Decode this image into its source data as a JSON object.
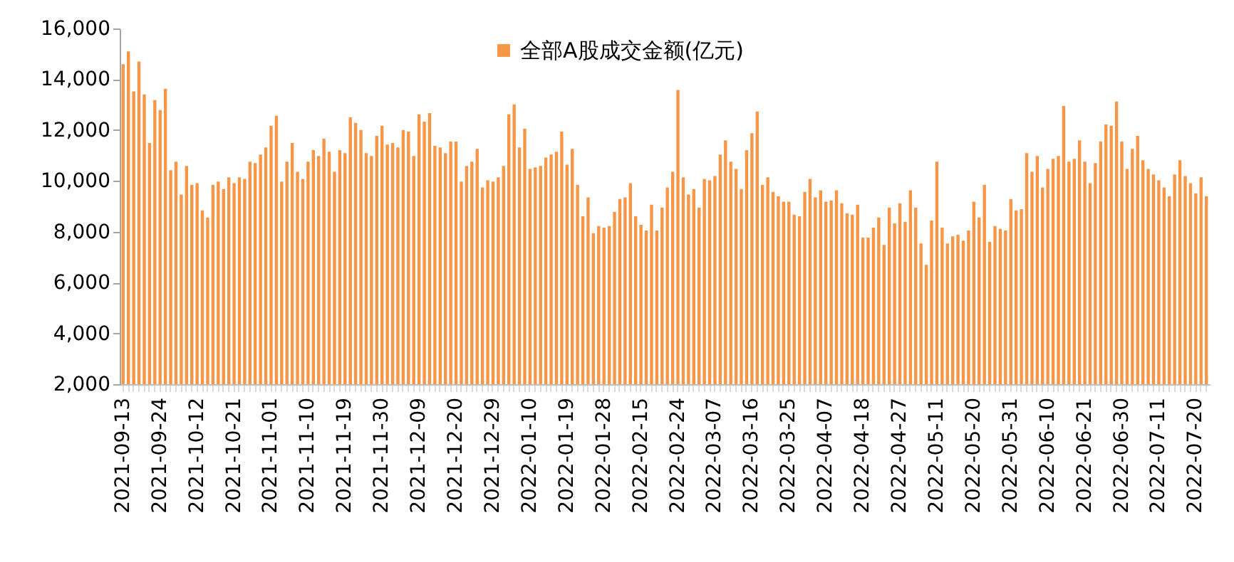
{
  "chart_data": {
    "type": "bar",
    "categories": [
      "2021-09-13",
      null,
      null,
      null,
      null,
      null,
      null,
      "2021-09-24",
      null,
      null,
      null,
      null,
      null,
      null,
      "2021-10-12",
      null,
      null,
      null,
      null,
      null,
      null,
      "2021-10-21",
      null,
      null,
      null,
      null,
      null,
      null,
      "2021-11-01",
      null,
      null,
      null,
      null,
      null,
      null,
      "2021-11-10",
      null,
      null,
      null,
      null,
      null,
      null,
      "2021-11-19",
      null,
      null,
      null,
      null,
      null,
      null,
      "2021-11-30",
      null,
      null,
      null,
      null,
      null,
      null,
      "2021-12-09",
      null,
      null,
      null,
      null,
      null,
      null,
      "2021-12-20",
      null,
      null,
      null,
      null,
      null,
      null,
      "2021-12-29",
      null,
      null,
      null,
      null,
      null,
      null,
      "2022-01-10",
      null,
      null,
      null,
      null,
      null,
      null,
      "2022-01-19",
      null,
      null,
      null,
      null,
      null,
      null,
      "2022-01-28",
      null,
      null,
      null,
      null,
      null,
      null,
      "2022-02-15",
      null,
      null,
      null,
      null,
      null,
      null,
      "2022-02-24",
      null,
      null,
      null,
      null,
      null,
      null,
      "2022-03-07",
      null,
      null,
      null,
      null,
      null,
      null,
      "2022-03-16",
      null,
      null,
      null,
      null,
      null,
      null,
      "2022-03-25",
      null,
      null,
      null,
      null,
      null,
      null,
      "2022-04-07",
      null,
      null,
      null,
      null,
      null,
      null,
      "2022-04-18",
      null,
      null,
      null,
      null,
      null,
      null,
      "2022-04-27",
      null,
      null,
      null,
      null,
      null,
      null,
      "2022-05-11",
      null,
      null,
      null,
      null,
      null,
      null,
      "2022-05-20",
      null,
      null,
      null,
      null,
      null,
      null,
      "2022-05-31",
      null,
      null,
      null,
      null,
      null,
      null,
      "2022-06-10",
      null,
      null,
      null,
      null,
      null,
      null,
      "2022-06-21",
      null,
      null,
      null,
      null,
      null,
      null,
      "2022-06-30",
      null,
      null,
      null,
      null,
      null,
      null,
      "2022-07-11",
      null,
      null,
      null,
      null,
      null,
      null,
      "2022-07-20",
      null,
      null
    ],
    "series": [
      {
        "name": "全部A股成交金额(亿元)",
        "color": "#f79646",
        "values": [
          14590,
          15100,
          13520,
          14700,
          13400,
          11490,
          13180,
          12790,
          13630,
          10420,
          10760,
          9460,
          10590,
          9850,
          9910,
          8840,
          8560,
          9850,
          9970,
          9680,
          10140,
          9910,
          10140,
          10080,
          10760,
          10700,
          11040,
          11320,
          12170,
          12560,
          9970,
          10760,
          11490,
          10360,
          10080,
          10760,
          11210,
          10980,
          11660,
          11150,
          10360,
          11210,
          11090,
          12500,
          12280,
          12000,
          11090,
          10980,
          11770,
          12170,
          11430,
          11490,
          11320,
          12000,
          11940,
          10980,
          12620,
          12330,
          12670,
          11380,
          11320,
          11090,
          11550,
          11550,
          9970,
          10590,
          10760,
          11260,
          9740,
          10020,
          9970,
          10140,
          10590,
          12620,
          13010,
          11320,
          12050,
          10470,
          10530,
          10590,
          10920,
          11040,
          11150,
          11940,
          10640,
          11260,
          9850,
          8610,
          9350,
          7940,
          8220,
          8160,
          8220,
          8780,
          9290,
          9350,
          9910,
          8610,
          8270,
          8050,
          9060,
          8050,
          8950,
          9740,
          10360,
          13580,
          10140,
          9460,
          9680,
          8950,
          10080,
          10020,
          10190,
          11040,
          11600,
          10760,
          10470,
          9680,
          11210,
          11880,
          12730,
          9850,
          10140,
          9570,
          9400,
          9180,
          9180,
          8670,
          8610,
          9570,
          10080,
          9350,
          9630,
          9180,
          9230,
          9630,
          9120,
          8730,
          8670,
          9060,
          7770,
          7770,
          8160,
          8560,
          7480,
          8950,
          8330,
          9120,
          8390,
          9630,
          8950,
          7540,
          6700,
          8440,
          10760,
          8160,
          7540,
          7820,
          7880,
          7650,
          8050,
          9180,
          8560,
          9850,
          7600,
          8220,
          8110,
          8050,
          9290,
          8840,
          8890,
          11090,
          10360,
          10980,
          9740,
          10470,
          10870,
          10980,
          12950,
          10760,
          10870,
          11600,
          10760,
          9910,
          10700,
          11550,
          12220,
          12170,
          13120,
          11550,
          10470,
          11260,
          11770,
          10810,
          10470,
          10250,
          10020,
          9740,
          9400,
          10250,
          10810,
          10190,
          9910,
          9510,
          10140,
          9400
        ]
      }
    ],
    "ylim": [
      2000,
      16000
    ],
    "yticks": [
      {
        "value": 2000,
        "label": "2,000"
      },
      {
        "value": 4000,
        "label": "4,000"
      },
      {
        "value": 6000,
        "label": "6,000"
      },
      {
        "value": 8000,
        "label": "8,000"
      },
      {
        "value": 10000,
        "label": "10,000"
      },
      {
        "value": 12000,
        "label": "12,000"
      },
      {
        "value": 14000,
        "label": "14,000"
      },
      {
        "value": 16000,
        "label": "16,000"
      }
    ],
    "grid": false,
    "legend": "top"
  }
}
